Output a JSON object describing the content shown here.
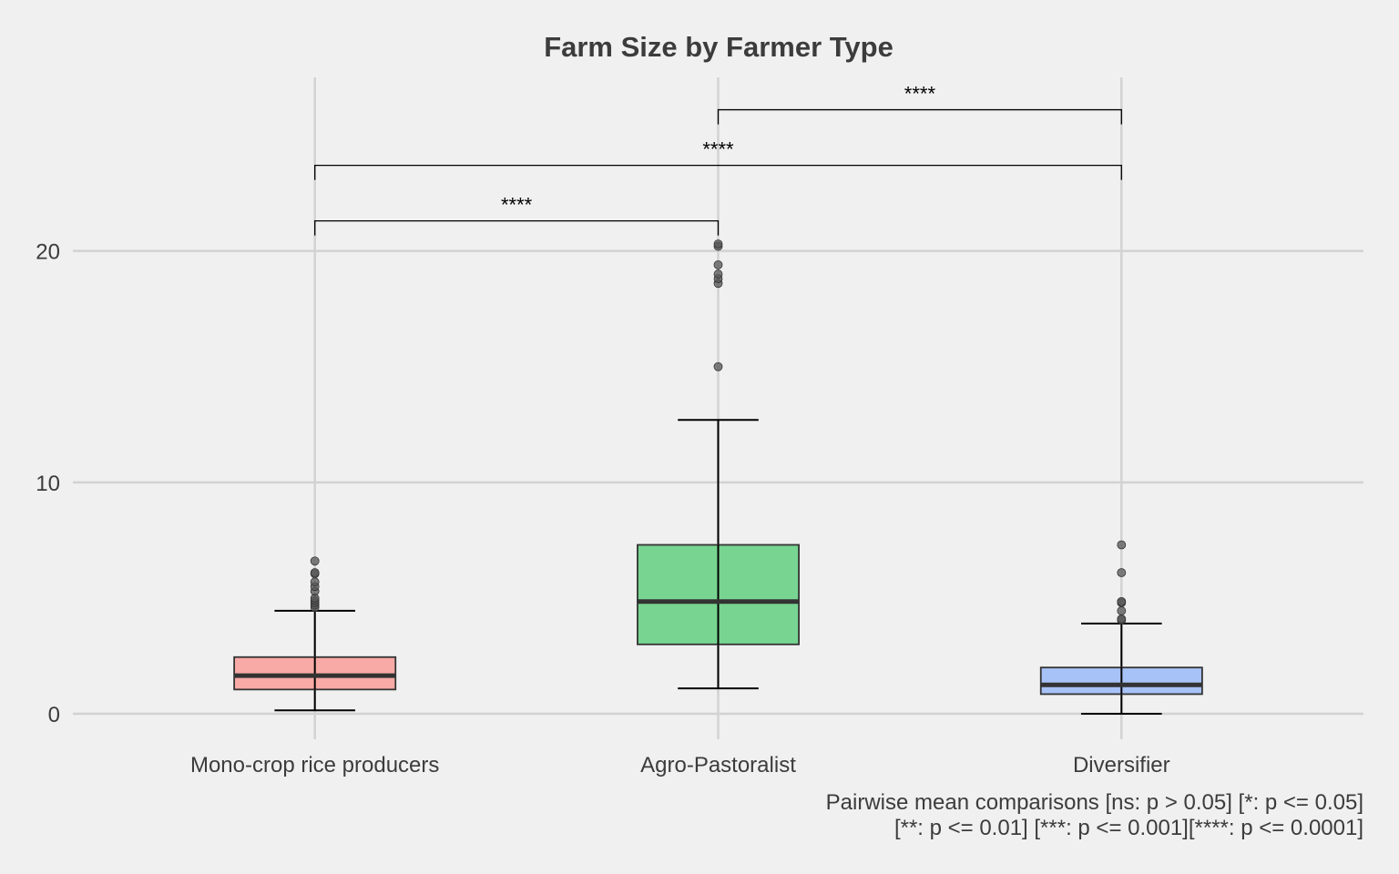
{
  "chart_data": {
    "type": "box",
    "title": "Farm Size by Farmer Type",
    "xlabel": "",
    "ylabel": "",
    "ylim": [
      -1.1,
      27.5
    ],
    "yticks": [
      0,
      10,
      20
    ],
    "ytick_labels": [
      "0",
      "10",
      "20"
    ],
    "grid": true,
    "legend": "none",
    "categories": [
      "Mono-crop rice producers",
      "Agro-Pastoralist",
      "Diversifier"
    ],
    "boxes": [
      {
        "category": "Mono-crop rice producers",
        "whisker_low": 0.15,
        "q1": 1.05,
        "median": 1.65,
        "q3": 2.45,
        "whisker_high": 4.45,
        "outliers": [
          4.6,
          4.7,
          4.8,
          4.9,
          5.0,
          5.3,
          5.5,
          5.7,
          6.05,
          6.1,
          6.6
        ],
        "color": "#f8aaa6"
      },
      {
        "category": "Agro-Pastoralist",
        "whisker_low": 1.1,
        "q1": 3.0,
        "median": 4.85,
        "q3": 7.3,
        "whisker_high": 12.7,
        "outliers": [
          15.0,
          18.6,
          18.8,
          19.0,
          19.4,
          20.2,
          20.3
        ],
        "color": "#77d591"
      },
      {
        "category": "Diversifier",
        "whisker_low": 0.0,
        "q1": 0.85,
        "median": 1.25,
        "q3": 2.0,
        "whisker_high": 3.9,
        "outliers": [
          4.05,
          4.1,
          4.45,
          4.8,
          4.85,
          6.1,
          7.3
        ],
        "color": "#a7c2f7"
      }
    ],
    "comparisons": [
      {
        "from": 0,
        "to": 1,
        "label": "****",
        "y": 21.3
      },
      {
        "from": 0,
        "to": 2,
        "label": "****",
        "y": 23.7
      },
      {
        "from": 1,
        "to": 2,
        "label": "****",
        "y": 26.1
      }
    ],
    "caption_lines": [
      "Pairwise mean comparisons [ns: p > 0.05] [*: p <= 0.05]",
      "[**: p <= 0.01] [***: p <= 0.001][****: p <= 0.0001]"
    ],
    "colors": {
      "background": "#f0f0f0",
      "grid": "#d2d2d2",
      "text": "#3c3c3c",
      "median": "#333333",
      "outlier": "#555555"
    }
  }
}
